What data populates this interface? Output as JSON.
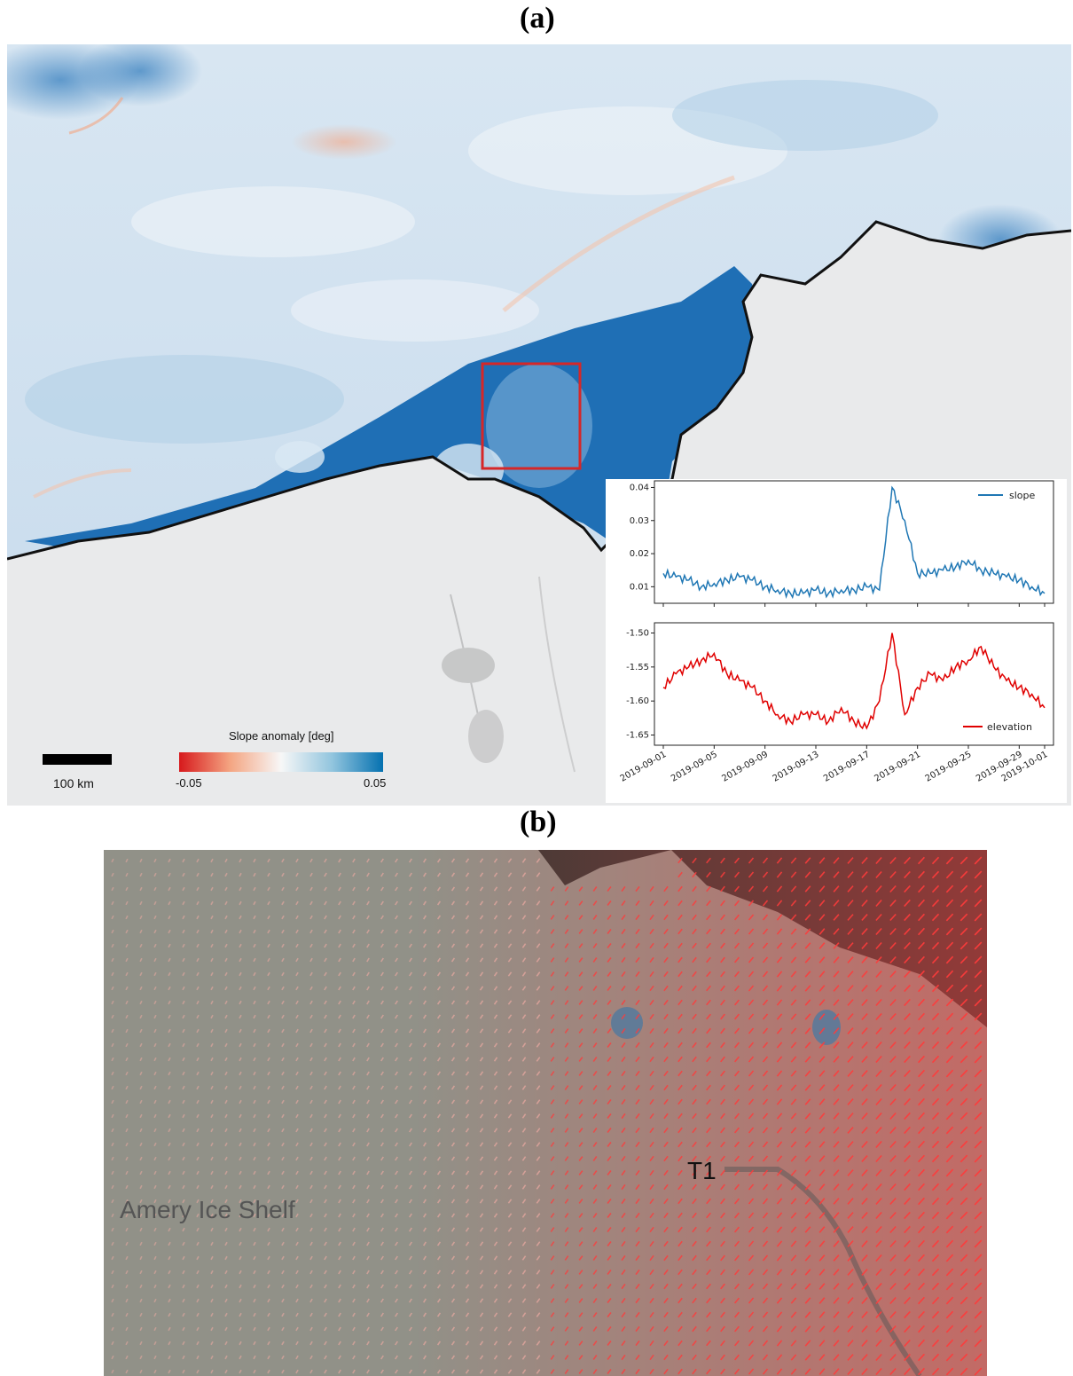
{
  "panel_labels": {
    "a": "(a)",
    "b": "(b)"
  },
  "map_a": {
    "scalebar_label": "100 km",
    "colorbar": {
      "title": "Slope anomaly [deg]",
      "min_label": "-0.05",
      "max_label": "0.05",
      "colors": [
        "#d7191c",
        "#f4a582",
        "#f7f7f7",
        "#92c5de",
        "#0571b0"
      ]
    },
    "colors": {
      "ocean_blue": "#1f6fb5",
      "ice_white": "#e9eaeb",
      "coast": "#111111",
      "box_red": "#d62728"
    }
  },
  "chart_data": [
    {
      "type": "line",
      "series": [
        {
          "name": "slope",
          "color": "#1f77b4",
          "x": [
            "2019-09-01",
            "2019-09-02",
            "2019-09-03",
            "2019-09-04",
            "2019-09-05",
            "2019-09-06",
            "2019-09-07",
            "2019-09-08",
            "2019-09-09",
            "2019-09-10",
            "2019-09-11",
            "2019-09-12",
            "2019-09-13",
            "2019-09-14",
            "2019-09-15",
            "2019-09-16",
            "2019-09-17",
            "2019-09-18",
            "2019-09-19",
            "2019-09-20",
            "2019-09-21",
            "2019-09-22",
            "2019-09-23",
            "2019-09-24",
            "2019-09-25",
            "2019-09-26",
            "2019-09-27",
            "2019-09-28",
            "2019-09-29",
            "2019-09-30",
            "2019-10-01"
          ],
          "y": [
            0.014,
            0.013,
            0.012,
            0.01,
            0.011,
            0.012,
            0.013,
            0.012,
            0.01,
            0.009,
            0.008,
            0.008,
            0.009,
            0.008,
            0.009,
            0.009,
            0.01,
            0.009,
            0.04,
            0.03,
            0.014,
            0.014,
            0.015,
            0.016,
            0.018,
            0.015,
            0.014,
            0.013,
            0.012,
            0.01,
            0.008
          ]
        }
      ],
      "yticks": [
        "0.01",
        "0.02",
        "0.03",
        "0.04"
      ],
      "ylim": [
        0.005,
        0.042
      ]
    },
    {
      "type": "line",
      "series": [
        {
          "name": "elevation",
          "color": "#e00000",
          "x": [
            "2019-09-01",
            "2019-09-02",
            "2019-09-03",
            "2019-09-04",
            "2019-09-05",
            "2019-09-06",
            "2019-09-07",
            "2019-09-08",
            "2019-09-09",
            "2019-09-10",
            "2019-09-11",
            "2019-09-12",
            "2019-09-13",
            "2019-09-14",
            "2019-09-15",
            "2019-09-16",
            "2019-09-17",
            "2019-09-18",
            "2019-09-19",
            "2019-09-20",
            "2019-09-21",
            "2019-09-22",
            "2019-09-23",
            "2019-09-24",
            "2019-09-25",
            "2019-09-26",
            "2019-09-27",
            "2019-09-28",
            "2019-09-29",
            "2019-09-30",
            "2019-10-01"
          ],
          "y": [
            -1.58,
            -1.56,
            -1.55,
            -1.54,
            -1.53,
            -1.56,
            -1.57,
            -1.58,
            -1.6,
            -1.62,
            -1.63,
            -1.62,
            -1.62,
            -1.63,
            -1.61,
            -1.63,
            -1.64,
            -1.6,
            -1.5,
            -1.62,
            -1.58,
            -1.56,
            -1.57,
            -1.55,
            -1.54,
            -1.52,
            -1.55,
            -1.57,
            -1.58,
            -1.59,
            -1.61
          ]
        }
      ],
      "yticks": [
        "-1.50",
        "-1.55",
        "-1.60",
        "-1.65"
      ],
      "ylim": [
        -1.665,
        -1.485
      ]
    }
  ],
  "x_ticks": [
    "2019-09-01",
    "2019-09-05",
    "2019-09-09",
    "2019-09-13",
    "2019-09-17",
    "2019-09-21",
    "2019-09-25",
    "2019-09-29",
    "2019-10-01"
  ],
  "panel_b": {
    "t1_label": "T1",
    "region_label": "Amery Ice Shelf",
    "colors": {
      "background": "#8b8b82",
      "arrow": "#ff3b3b",
      "dark_water": "#3a3a36"
    }
  }
}
